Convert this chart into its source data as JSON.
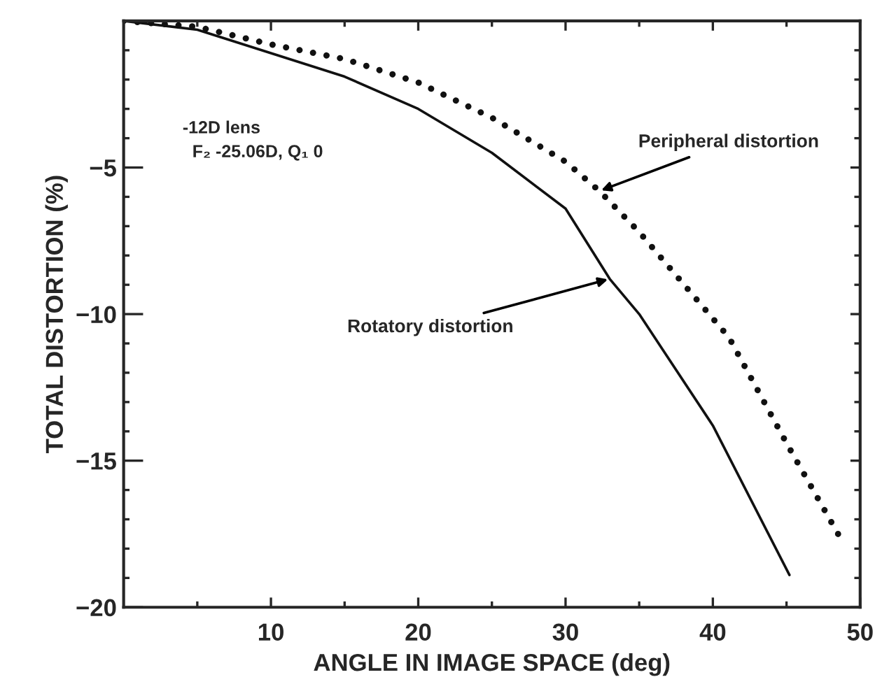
{
  "chart_data": {
    "type": "line",
    "xlabel": "ANGLE IN IMAGE SPACE (deg)",
    "ylabel": "TOTAL DISTORTION (%)",
    "xlim": [
      0,
      50
    ],
    "ylim": [
      -20,
      0
    ],
    "xticks": [
      {
        "value": 5,
        "label": null
      },
      10,
      {
        "value": 15,
        "label": null
      },
      20,
      {
        "value": 25,
        "label": null
      },
      30,
      {
        "value": 35,
        "label": null
      },
      40,
      {
        "value": 45,
        "label": null
      },
      50
    ],
    "yticks": [
      {
        "value": -1,
        "label": null
      },
      {
        "value": -2,
        "label": null
      },
      {
        "value": -3,
        "label": null
      },
      {
        "value": -4,
        "label": null
      },
      -5,
      {
        "value": -6,
        "label": null
      },
      {
        "value": -7,
        "label": null
      },
      {
        "value": -8,
        "label": null
      },
      {
        "value": -9,
        "label": null
      },
      -10,
      {
        "value": -11,
        "label": null
      },
      {
        "value": -12,
        "label": null
      },
      {
        "value": -13,
        "label": null
      },
      {
        "value": -14,
        "label": null
      },
      -15,
      {
        "value": -16,
        "label": null
      },
      {
        "value": -17,
        "label": null
      },
      {
        "value": -18,
        "label": null
      },
      {
        "value": -19,
        "label": null
      },
      -20
    ],
    "grid": false,
    "marker": "none",
    "series": [
      {
        "color": "#111111",
        "line_style": "solid",
        "x": [
          0,
          5,
          10,
          15,
          20,
          25,
          30,
          33,
          35,
          40,
          45.2
        ],
        "values": [
          0,
          -0.3,
          -1.1,
          -1.9,
          -3.0,
          -4.5,
          -6.4,
          -8.8,
          -10.0,
          -13.8,
          -18.9
        ]
      },
      {
        "color": "#111111",
        "line_style": "dotted",
        "x": [
          0,
          5,
          10,
          15,
          20,
          25,
          30,
          32.3,
          35,
          41.1,
          45,
          48.5
        ],
        "values": [
          0,
          -0.2,
          -0.8,
          -1.3,
          -2.1,
          -3.3,
          -4.8,
          -5.8,
          -7.2,
          -10.8,
          -14.4,
          -17.5
        ]
      }
    ],
    "annotations": [
      {
        "text": "Peripheral distortion",
        "x": 32.3,
        "y": -5.8
      },
      {
        "text": "Rotatory distortion",
        "x": 33,
        "y": -8.8
      },
      "-12D lens\n  F₂ -25.06D, Q₁ 0"
    ]
  }
}
